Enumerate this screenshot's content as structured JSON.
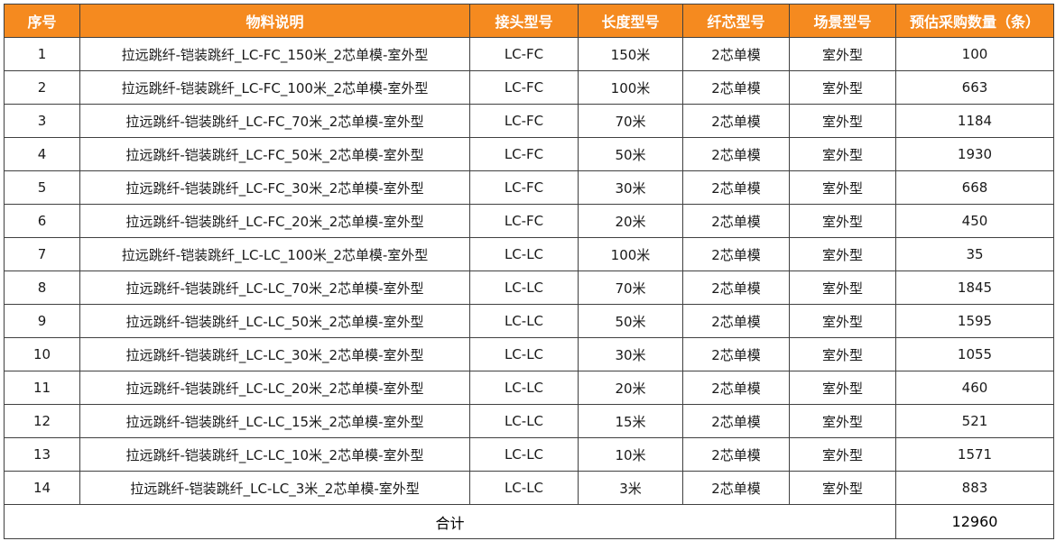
{
  "table": {
    "header_bg": "#f58a1f",
    "header_fg": "#ffffff",
    "headers": [
      "序号",
      "物料说明",
      "接头型号",
      "长度型号",
      "纤芯型号",
      "场景型号",
      "预估采购数量（条）"
    ],
    "rows": [
      [
        "1",
        "拉远跳纤-铠装跳纤_LC-FC_150米_2芯单模-室外型",
        "LC-FC",
        "150米",
        "2芯单模",
        "室外型",
        "100"
      ],
      [
        "2",
        "拉远跳纤-铠装跳纤_LC-FC_100米_2芯单模-室外型",
        "LC-FC",
        "100米",
        "2芯单模",
        "室外型",
        "663"
      ],
      [
        "3",
        "拉远跳纤-铠装跳纤_LC-FC_70米_2芯单模-室外型",
        "LC-FC",
        "70米",
        "2芯单模",
        "室外型",
        "1184"
      ],
      [
        "4",
        "拉远跳纤-铠装跳纤_LC-FC_50米_2芯单模-室外型",
        "LC-FC",
        "50米",
        "2芯单模",
        "室外型",
        "1930"
      ],
      [
        "5",
        "拉远跳纤-铠装跳纤_LC-FC_30米_2芯单模-室外型",
        "LC-FC",
        "30米",
        "2芯单模",
        "室外型",
        "668"
      ],
      [
        "6",
        "拉远跳纤-铠装跳纤_LC-FC_20米_2芯单模-室外型",
        "LC-FC",
        "20米",
        "2芯单模",
        "室外型",
        "450"
      ],
      [
        "7",
        "拉远跳纤-铠装跳纤_LC-LC_100米_2芯单模-室外型",
        "LC-LC",
        "100米",
        "2芯单模",
        "室外型",
        "35"
      ],
      [
        "8",
        "拉远跳纤-铠装跳纤_LC-LC_70米_2芯单模-室外型",
        "LC-LC",
        "70米",
        "2芯单模",
        "室外型",
        "1845"
      ],
      [
        "9",
        "拉远跳纤-铠装跳纤_LC-LC_50米_2芯单模-室外型",
        "LC-LC",
        "50米",
        "2芯单模",
        "室外型",
        "1595"
      ],
      [
        "10",
        "拉远跳纤-铠装跳纤_LC-LC_30米_2芯单模-室外型",
        "LC-LC",
        "30米",
        "2芯单模",
        "室外型",
        "1055"
      ],
      [
        "11",
        "拉远跳纤-铠装跳纤_LC-LC_20米_2芯单模-室外型",
        "LC-LC",
        "20米",
        "2芯单模",
        "室外型",
        "460"
      ],
      [
        "12",
        "拉远跳纤-铠装跳纤_LC-LC_15米_2芯单模-室外型",
        "LC-LC",
        "15米",
        "2芯单模",
        "室外型",
        "521"
      ],
      [
        "13",
        "拉远跳纤-铠装跳纤_LC-LC_10米_2芯单模-室外型",
        "LC-LC",
        "10米",
        "2芯单模",
        "室外型",
        "1571"
      ],
      [
        "14",
        "拉远跳纤-铠装跳纤_LC-LC_3米_2芯单模-室外型",
        "LC-LC",
        "3米",
        "2芯单模",
        "室外型",
        "883"
      ]
    ],
    "total": {
      "label": "合计",
      "value": "12960"
    }
  }
}
